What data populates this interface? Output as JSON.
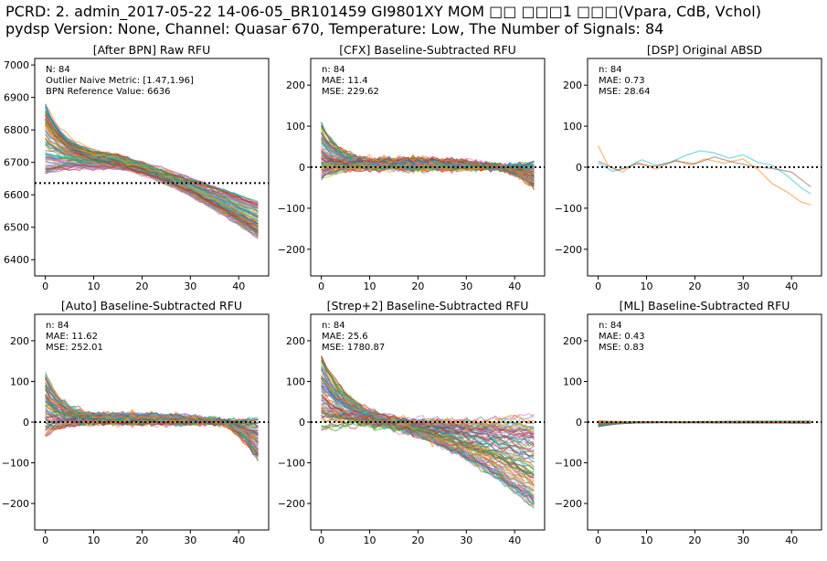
{
  "figure": {
    "title_line1": "PCRD: 2. admin_2017-05-22 14-06-05_BR101459 GI9801XY MOM □□ □□□1 □□□(Vpara, CdB, Vchol)",
    "title_line2": "pydsp Version: None, Channel: Quasar 670, Temperature: Low, The Number of Signals: 84"
  },
  "chart_data": [
    {
      "type": "line",
      "id": "raw",
      "title": "[After BPN] Raw RFU",
      "xlim": [
        -2.2,
        46.2
      ],
      "ylim": [
        6350,
        7020
      ],
      "xticks": [
        0,
        10,
        20,
        30,
        40
      ],
      "yticks": [
        6400,
        6500,
        6600,
        6700,
        6800,
        6900,
        7000
      ],
      "n_cycles": 45,
      "n_signals": 84,
      "reference_line": 6636,
      "annotations": [
        "N: 84",
        "Outlier Naive Metric: [1.47,1.96]",
        "BPN Reference Value: 6636"
      ],
      "series_model": {
        "start": [
          6660,
          6890
        ],
        "level_at_15": [
          6680,
          6720
        ],
        "end": [
          6465,
          6580
        ]
      }
    },
    {
      "type": "line",
      "id": "cfx",
      "title": "[CFX] Baseline-Subtracted RFU",
      "xlim": [
        -2.2,
        46.2
      ],
      "ylim": [
        -265,
        265
      ],
      "xticks": [
        0,
        10,
        20,
        30,
        40
      ],
      "yticks": [
        -200,
        -100,
        0,
        100,
        200
      ],
      "n_cycles": 45,
      "n_signals": 84,
      "reference_line": 0,
      "annotations": [
        "n: 84",
        "MAE: 11.4",
        "MSE: 229.62"
      ],
      "series_model": {
        "start": [
          -30,
          110
        ],
        "end": [
          -50,
          15
        ]
      }
    },
    {
      "type": "line",
      "id": "dsp",
      "title": "[DSP] Original ABSD",
      "xlim": [
        -2.2,
        46.2
      ],
      "ylim": [
        -265,
        265
      ],
      "xticks": [
        0,
        10,
        20,
        30,
        40
      ],
      "yticks": [
        -200,
        -100,
        0,
        100,
        200
      ],
      "n_cycles": 45,
      "reference_line": 0,
      "annotations": [
        "n: 84",
        "MAE: 0.73",
        "MSE: 28.64"
      ],
      "series": [
        {
          "color": "#ff7f0e",
          "x": [
            0,
            2,
            5,
            8,
            12,
            16,
            19,
            22,
            26,
            30,
            33,
            36,
            39,
            42,
            44
          ],
          "y": [
            52,
            5,
            -12,
            12,
            -5,
            18,
            5,
            20,
            10,
            20,
            -5,
            -40,
            -60,
            -85,
            -92
          ]
        },
        {
          "color": "#17becf",
          "x": [
            0,
            3,
            6,
            9,
            12,
            15,
            18,
            21,
            24,
            27,
            30,
            33,
            36,
            39,
            42,
            44
          ],
          "y": [
            10,
            -10,
            0,
            18,
            5,
            12,
            28,
            40,
            35,
            22,
            30,
            12,
            5,
            -20,
            -50,
            -65
          ]
        },
        {
          "color": "#8c564b",
          "x": [
            0,
            4,
            8,
            12,
            16,
            20,
            24,
            28,
            32,
            36,
            40,
            44
          ],
          "y": [
            15,
            -8,
            8,
            2,
            15,
            8,
            25,
            12,
            2,
            -3,
            -12,
            -48
          ]
        }
      ]
    },
    {
      "type": "line",
      "id": "auto",
      "title": "[Auto] Baseline-Subtracted RFU",
      "xlim": [
        -2.2,
        46.2
      ],
      "ylim": [
        -265,
        265
      ],
      "xticks": [
        0,
        10,
        20,
        30,
        40
      ],
      "yticks": [
        -200,
        -100,
        0,
        100,
        200
      ],
      "n_cycles": 45,
      "n_signals": 84,
      "reference_line": 0,
      "annotations": [
        "n: 84",
        "MAE: 11.62",
        "MSE: 252.01"
      ],
      "series_model": {
        "start": [
          -35,
          120
        ],
        "end": [
          -95,
          15
        ]
      }
    },
    {
      "type": "line",
      "id": "strep",
      "title": "[Strep+2] Baseline-Subtracted RFU",
      "xlim": [
        -2.2,
        46.2
      ],
      "ylim": [
        -265,
        265
      ],
      "xticks": [
        0,
        10,
        20,
        30,
        40
      ],
      "yticks": [
        -200,
        -100,
        0,
        100,
        200
      ],
      "n_cycles": 45,
      "n_signals": 84,
      "reference_line": 0,
      "annotations": [
        "n: 84",
        "MAE: 25.6",
        "MSE: 1780.87"
      ],
      "series_model": {
        "start": [
          -20,
          165
        ],
        "end": [
          -220,
          15
        ]
      }
    },
    {
      "type": "line",
      "id": "ml",
      "title": "[ML] Baseline-Subtracted RFU",
      "xlim": [
        -2.2,
        46.2
      ],
      "ylim": [
        -265,
        265
      ],
      "xticks": [
        0,
        10,
        20,
        30,
        40
      ],
      "yticks": [
        -200,
        -100,
        0,
        100,
        200
      ],
      "n_cycles": 45,
      "n_signals": 84,
      "reference_line": 0,
      "annotations": [
        "n: 84",
        "MAE: 0.43",
        "MSE: 0.83"
      ],
      "series_model": {
        "start": [
          -12,
          3
        ],
        "end": [
          -2,
          2
        ]
      }
    }
  ],
  "palette": [
    "#1f77b4",
    "#ff7f0e",
    "#2ca02c",
    "#d62728",
    "#9467bd",
    "#8c564b",
    "#e377c2",
    "#7f7f7f",
    "#bcbd22",
    "#17becf"
  ]
}
